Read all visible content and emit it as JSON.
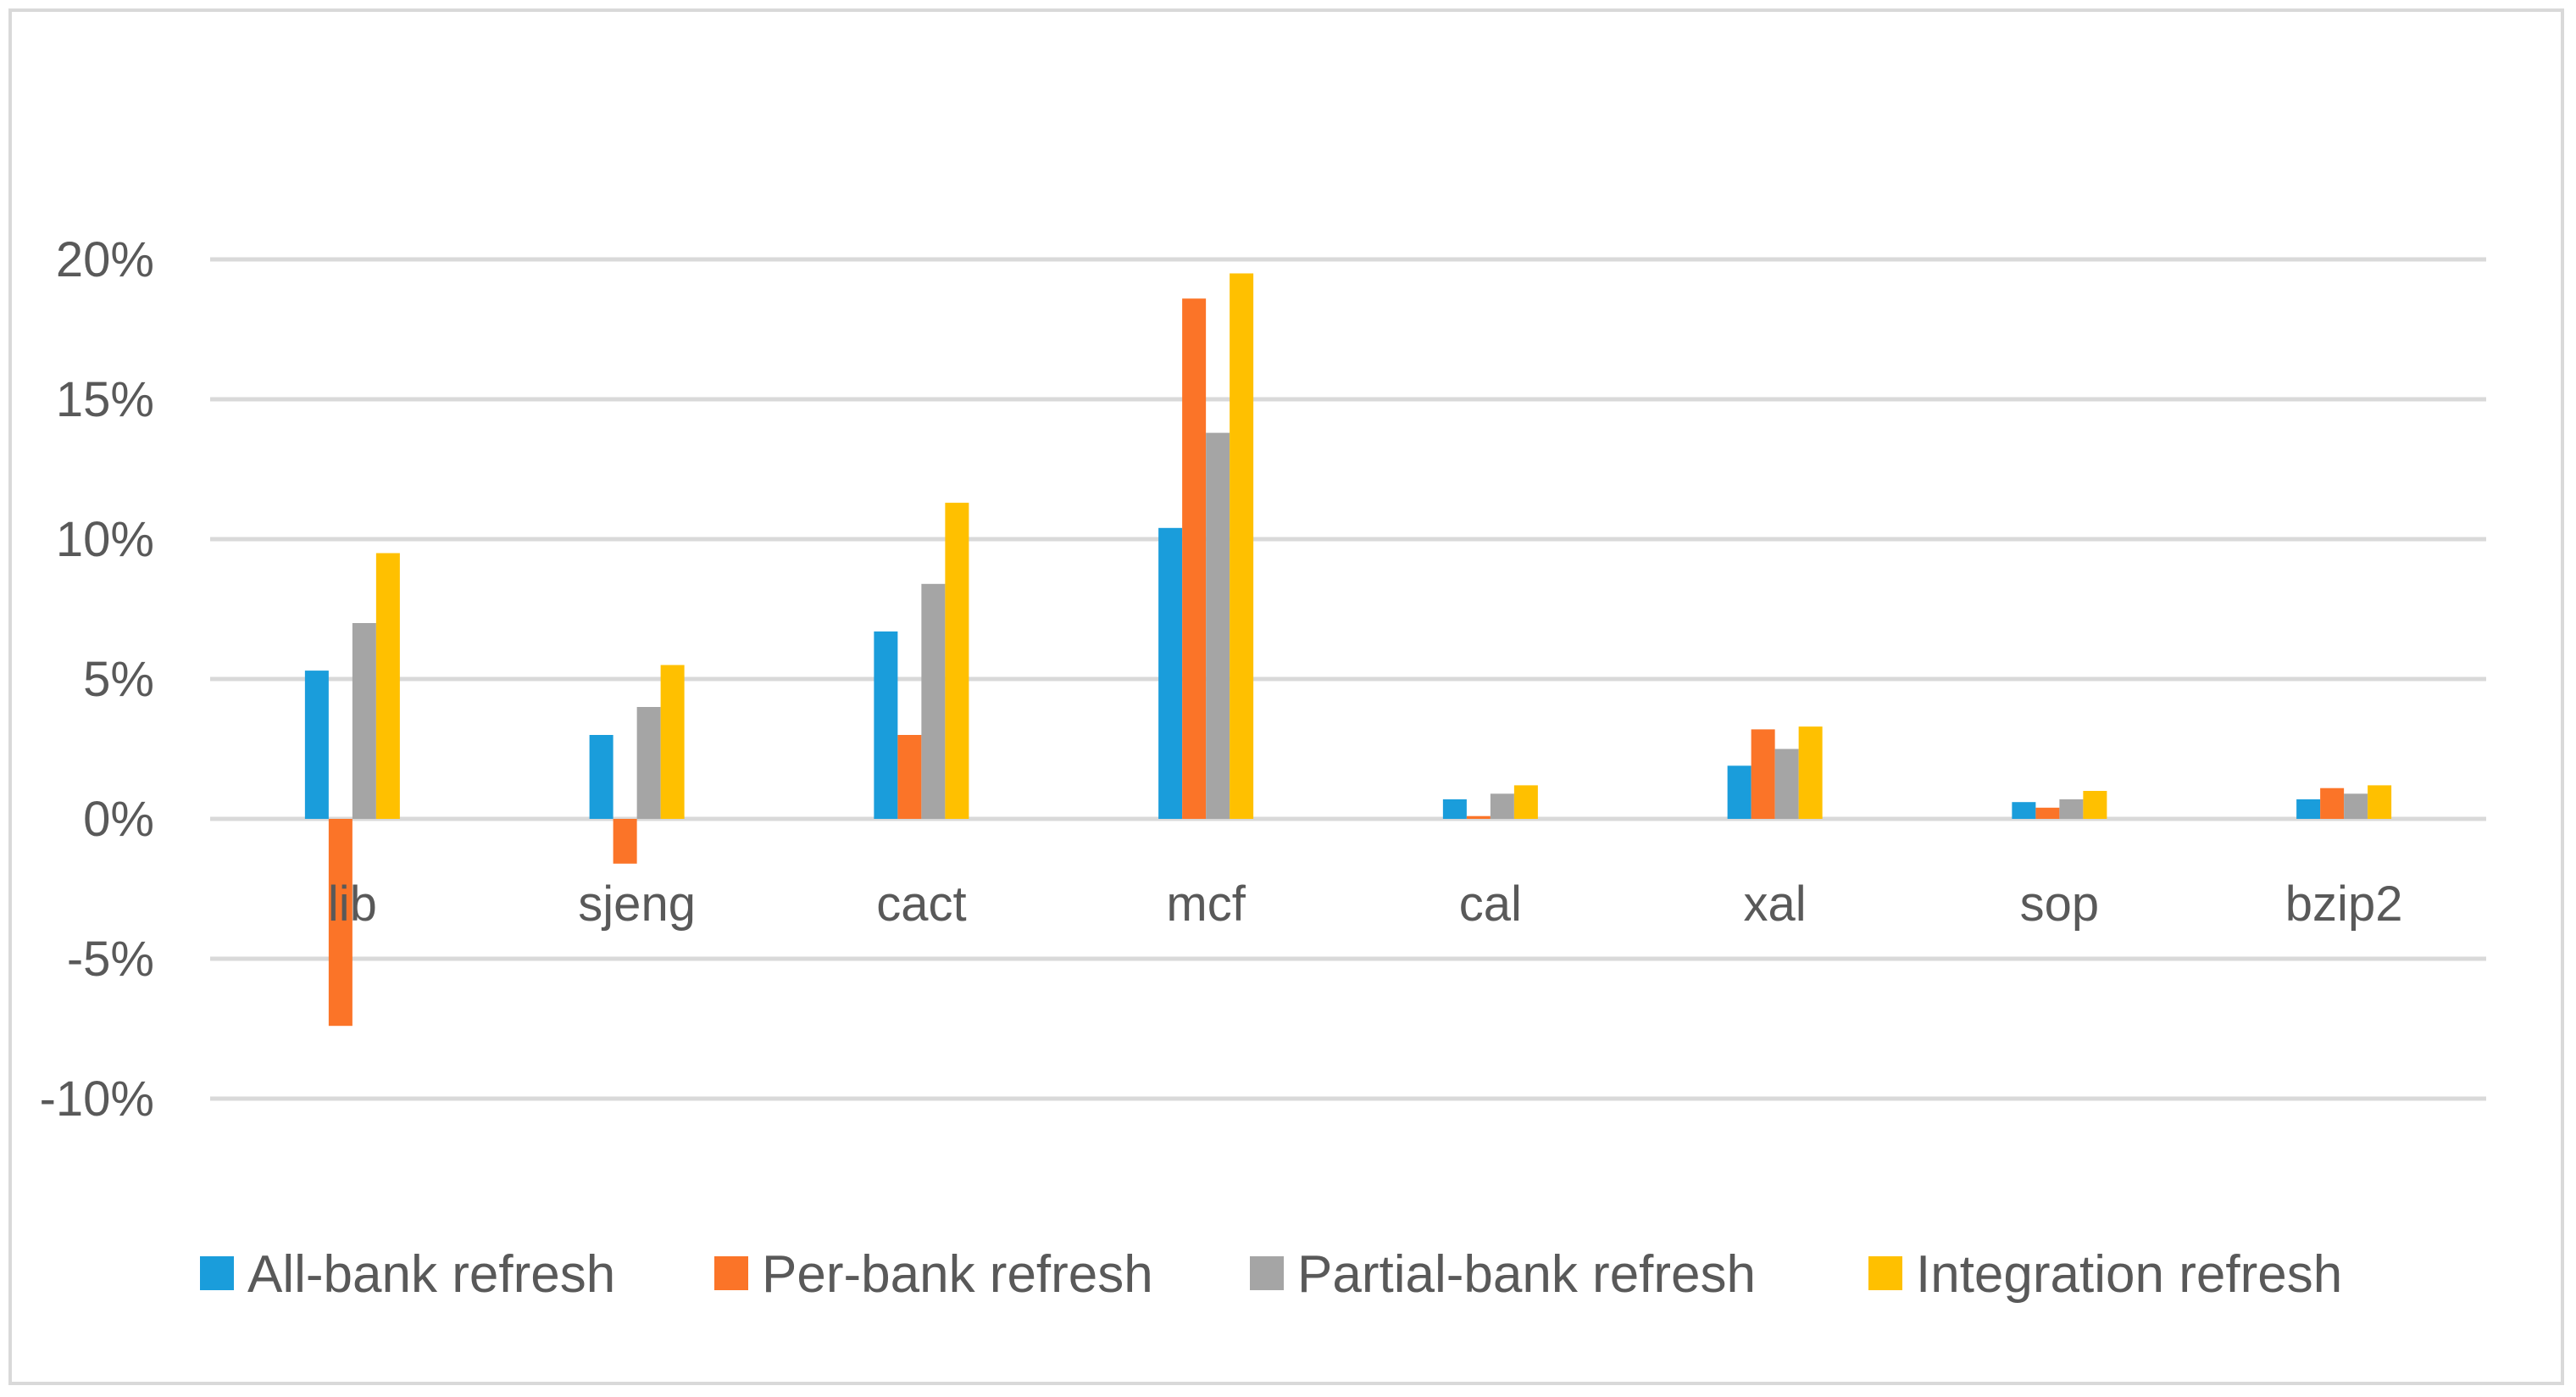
{
  "chart_data": {
    "type": "bar",
    "title": "",
    "xlabel": "",
    "ylabel": "",
    "ylim": [
      -10,
      20
    ],
    "yticks": [
      "-10%",
      "-5%",
      "0%",
      "5%",
      "10%",
      "15%",
      "20%"
    ],
    "ytick_values": [
      -10,
      -5,
      0,
      5,
      10,
      15,
      20
    ],
    "grid": true,
    "legend_position": "bottom",
    "categories": [
      "lib",
      "sjeng",
      "cact",
      "mcf",
      "cal",
      "xal",
      "sop",
      "bzip2"
    ],
    "series": [
      {
        "name": "All-bank refresh",
        "color": "#1a9ddb",
        "values": [
          5.3,
          3.0,
          6.7,
          10.4,
          0.7,
          1.9,
          0.6,
          0.7
        ]
      },
      {
        "name": "Per-bank refresh",
        "color": "#fb7428",
        "values": [
          -7.4,
          -1.6,
          3.0,
          18.6,
          0.1,
          3.2,
          0.4,
          1.1
        ]
      },
      {
        "name": "Partial-bank refresh",
        "color": "#a5a5a5",
        "values": [
          7.0,
          4.0,
          8.4,
          13.8,
          0.9,
          2.5,
          0.7,
          0.9
        ]
      },
      {
        "name": "Integration refresh",
        "color": "#ffc000",
        "values": [
          9.5,
          5.5,
          11.3,
          19.5,
          1.2,
          3.3,
          1.0,
          1.2
        ]
      }
    ]
  }
}
